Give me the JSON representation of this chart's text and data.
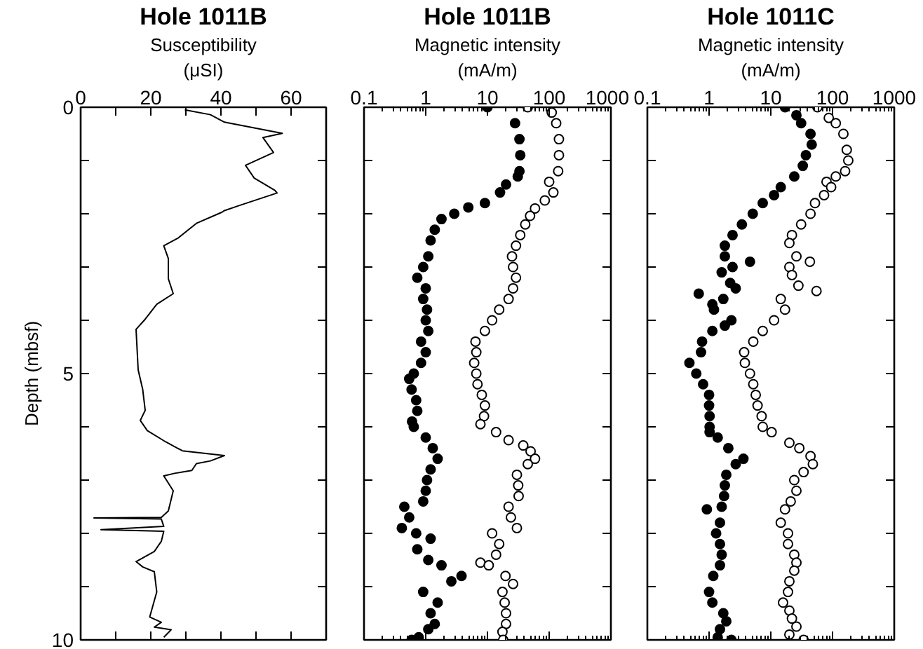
{
  "chart_data": [
    {
      "type": "line",
      "title": "Hole 1011B",
      "xlabel": "Susceptibility\n(μSI)",
      "ylabel": "Depth (mbsf)",
      "xlim": [
        0,
        70
      ],
      "ylim": [
        10,
        0
      ],
      "xticks": [
        0,
        {
          "value": 10,
          "label": null
        },
        20,
        {
          "value": 30,
          "label": null
        },
        40,
        {
          "value": 50,
          "label": null
        },
        60
      ],
      "yticks": [
        0,
        {
          "value": 1,
          "label": null
        },
        {
          "value": 2,
          "label": null
        },
        {
          "value": 3,
          "label": null
        },
        {
          "value": 4,
          "label": null
        },
        5,
        {
          "value": 6,
          "label": null
        },
        {
          "value": 7,
          "label": null
        },
        {
          "value": 8,
          "label": null
        },
        {
          "value": 9,
          "label": null
        },
        10
      ],
      "series": [
        {
          "color": "#000000",
          "x": [
            29.7,
            37,
            41,
            57.5,
            52,
            55,
            47,
            49.5,
            55.4,
            56,
            45,
            41,
            40.3,
            33,
            27.7,
            23.7,
            25,
            25,
            26.4,
            21.7,
            18.4,
            15.8,
            16.4,
            17.7,
            18.4,
            17,
            19,
            23.7,
            29,
            41,
            37,
            33,
            31.7,
            27,
            23.7,
            26.4,
            25,
            23,
            3.8,
            23,
            23.7,
            5.8,
            23.7,
            23,
            21,
            15.8,
            17.7,
            21,
            21.7,
            19.7,
            23,
            21,
            25.8,
            23.7
          ],
          "values": [
            0.05,
            0.14,
            0.28,
            0.49,
            0.57,
            0.85,
            1.09,
            1.33,
            1.56,
            1.61,
            1.85,
            1.94,
            1.97,
            2.18,
            2.46,
            2.6,
            2.84,
            3.22,
            3.5,
            3.7,
            3.98,
            4.17,
            4.93,
            5.3,
            5.69,
            5.88,
            6.07,
            6.26,
            6.45,
            6.54,
            6.64,
            6.69,
            6.82,
            6.87,
            6.92,
            7.2,
            7.58,
            7.7,
            7.71,
            7.73,
            7.87,
            7.93,
            7.96,
            8.15,
            8.34,
            8.53,
            8.63,
            8.72,
            9.1,
            9.57,
            9.67,
            9.76,
            9.81,
            9.95
          ]
        }
      ]
    },
    {
      "type": "scatter",
      "title": "Hole 1011B",
      "xlabel": "Magnetic intensity\n(mA/m)",
      "log": "x",
      "marker": "circle",
      "tick_labels": "x",
      "xlim": [
        0.1,
        1000
      ],
      "ylim": [
        10,
        0
      ],
      "xticks": [
        0.1,
        1,
        10,
        100,
        1000
      ],
      "yticks": [
        {
          "value": 0,
          "label": null
        },
        {
          "value": 1,
          "label": null
        },
        {
          "value": 2,
          "label": null
        },
        {
          "value": 3,
          "label": null
        },
        {
          "value": 4,
          "label": null
        },
        {
          "value": 5,
          "label": null
        },
        {
          "value": 6,
          "label": null
        },
        {
          "value": 7,
          "label": null
        },
        {
          "value": 8,
          "label": null
        },
        {
          "value": 9,
          "label": null
        },
        {
          "value": 10,
          "label": null
        }
      ],
      "series": [
        {
          "color": "#000000",
          "x": [
            10,
            28,
            33,
            34,
            33,
            31,
            20,
            16,
            9.1,
            4.9,
            2.9,
            1.8,
            1.4,
            1.2,
            1.1,
            0.91,
            0.73,
            1.0,
            0.91,
            1.05,
            1.0,
            1.1,
            0.84,
            1.0,
            0.84,
            0.64,
            0.54,
            0.59,
            0.7,
            0.73,
            0.6,
            0.64,
            1.0,
            1.3,
            1.56,
            1.2,
            1.05,
            1.0,
            0.91,
            0.45,
            0.54,
            0.41,
            0.7,
            1.2,
            0.73,
            1.1,
            1.8,
            3.8,
            2.6,
            0.91,
            1.56,
            1.2,
            1.4,
            1.1,
            0.77,
            0.59
          ],
          "values": [
            0.0,
            0.3,
            0.6,
            0.9,
            1.2,
            1.3,
            1.45,
            1.6,
            1.8,
            1.88,
            2.0,
            2.1,
            2.3,
            2.5,
            2.8,
            3.0,
            3.2,
            3.4,
            3.6,
            3.8,
            4.0,
            4.2,
            4.4,
            4.6,
            4.8,
            5.0,
            5.1,
            5.3,
            5.5,
            5.7,
            5.9,
            6.0,
            6.2,
            6.4,
            6.6,
            6.8,
            7.0,
            7.2,
            7.4,
            7.5,
            7.7,
            7.9,
            8.0,
            8.1,
            8.3,
            8.5,
            8.6,
            8.8,
            8.9,
            9.1,
            9.3,
            9.5,
            9.7,
            9.8,
            9.95,
            10.0
          ]
        },
        {
          "color": "#ffffff",
          "x": [
            45,
            110,
            130,
            144,
            144,
            140,
            100,
            117,
            85,
            59,
            49,
            41,
            34,
            29,
            25,
            26,
            29,
            26,
            22,
            15.5,
            11.9,
            9.1,
            6.4,
            6.6,
            6.1,
            6.6,
            6.9,
            8.1,
            9.1,
            8.8,
            7.7,
            13.8,
            22,
            38,
            50,
            59,
            45,
            30,
            31.5,
            32,
            22,
            24,
            30,
            11.9,
            15.5,
            13.8,
            7.7,
            10.5,
            19.6,
            26,
            17.5,
            19,
            20,
            20,
            17.5,
            18
          ],
          "values": [
            0.0,
            0.1,
            0.3,
            0.6,
            0.9,
            1.2,
            1.4,
            1.6,
            1.75,
            1.9,
            2.04,
            2.2,
            2.4,
            2.6,
            2.8,
            3.0,
            3.2,
            3.4,
            3.6,
            3.8,
            4.0,
            4.2,
            4.4,
            4.6,
            4.8,
            5.0,
            5.2,
            5.4,
            5.6,
            5.8,
            5.95,
            6.1,
            6.25,
            6.35,
            6.46,
            6.6,
            6.7,
            6.9,
            7.1,
            7.3,
            7.5,
            7.7,
            7.9,
            8.0,
            8.2,
            8.4,
            8.55,
            8.6,
            8.8,
            8.95,
            9.1,
            9.3,
            9.5,
            9.7,
            9.85,
            10.0
          ]
        }
      ]
    },
    {
      "type": "scatter",
      "title": "Hole 1011C",
      "xlabel": "Magnetic intensity\n(mA/m)",
      "log": "x",
      "marker": "circle",
      "tick_labels": "x",
      "xlim": [
        0.1,
        1000
      ],
      "ylim": [
        10,
        0
      ],
      "xticks": [
        0.1,
        1,
        10,
        100,
        1000
      ],
      "yticks": [
        {
          "value": 0,
          "label": null
        },
        {
          "value": 1,
          "label": null
        },
        {
          "value": 2,
          "label": null
        },
        {
          "value": 3,
          "label": null
        },
        {
          "value": 4,
          "label": null
        },
        {
          "value": 5,
          "label": null
        },
        {
          "value": 6,
          "label": null
        },
        {
          "value": 7,
          "label": null
        },
        {
          "value": 8,
          "label": null
        },
        {
          "value": 9,
          "label": null
        },
        {
          "value": 10,
          "label": null
        }
      ],
      "series": [
        {
          "color": "#000000",
          "x": [
            17,
            26,
            31,
            44,
            46,
            37,
            33,
            24,
            14.5,
            11.3,
            7.4,
            5.1,
            3.4,
            2.4,
            1.8,
            1.8,
            4.6,
            2.4,
            1.6,
            2.2,
            2.7,
            0.68,
            1.7,
            1.13,
            1.2,
            2.3,
            1.8,
            1.13,
            0.77,
            0.74,
            0.48,
            0.62,
            0.8,
            1.0,
            1.0,
            1.02,
            1.02,
            1.02,
            1.38,
            2.05,
            3.6,
            2.7,
            1.9,
            1.8,
            1.75,
            1.6,
            0.92,
            1.5,
            1.3,
            1.5,
            1.6,
            1.5,
            1.17,
            1.0,
            1.13,
            1.7,
            1.9,
            1.5,
            1.38,
            2.3
          ],
          "values": [
            0.0,
            0.15,
            0.3,
            0.5,
            0.7,
            0.9,
            1.1,
            1.3,
            1.5,
            1.65,
            1.8,
            2.0,
            2.2,
            2.4,
            2.6,
            2.8,
            2.9,
            3.0,
            3.1,
            3.3,
            3.4,
            3.5,
            3.6,
            3.7,
            3.8,
            4.0,
            4.1,
            4.2,
            4.4,
            4.6,
            4.8,
            5.0,
            5.2,
            5.4,
            5.6,
            5.8,
            6.0,
            6.1,
            6.2,
            6.4,
            6.6,
            6.7,
            6.9,
            7.1,
            7.3,
            7.5,
            7.55,
            7.8,
            8.0,
            8.2,
            8.4,
            8.6,
            8.8,
            9.1,
            9.3,
            9.5,
            9.65,
            9.8,
            9.95,
            10.0
          ]
        },
        {
          "color": "#ffffff",
          "x": [
            57,
            87,
            113,
            150,
            170,
            180,
            160,
            113,
            80,
            95,
            73,
            52,
            44,
            31,
            22,
            20,
            26,
            43,
            20,
            22,
            28,
            55,
            14.5,
            17,
            11.3,
            7.4,
            5.2,
            3.7,
            3.8,
            4.6,
            5.2,
            5.7,
            6.1,
            7.1,
            7.4,
            10.3,
            20,
            29,
            44,
            48,
            34,
            24,
            26,
            21,
            17,
            14.5,
            19,
            19,
            24,
            26,
            24,
            20,
            19,
            15.8,
            20,
            22,
            26,
            20,
            34
          ],
          "values": [
            0.0,
            0.2,
            0.3,
            0.5,
            0.8,
            1.0,
            1.2,
            1.3,
            1.4,
            1.5,
            1.65,
            1.8,
            2.0,
            2.2,
            2.4,
            2.55,
            2.8,
            2.9,
            3.0,
            3.15,
            3.35,
            3.45,
            3.6,
            3.8,
            4.0,
            4.2,
            4.4,
            4.6,
            4.8,
            5.0,
            5.2,
            5.4,
            5.6,
            5.8,
            6.0,
            6.1,
            6.3,
            6.4,
            6.55,
            6.7,
            6.85,
            7.0,
            7.2,
            7.4,
            7.55,
            7.8,
            8.0,
            8.2,
            8.4,
            8.55,
            8.7,
            8.9,
            9.1,
            9.3,
            9.45,
            9.6,
            9.75,
            9.9,
            10.0
          ]
        }
      ]
    }
  ]
}
